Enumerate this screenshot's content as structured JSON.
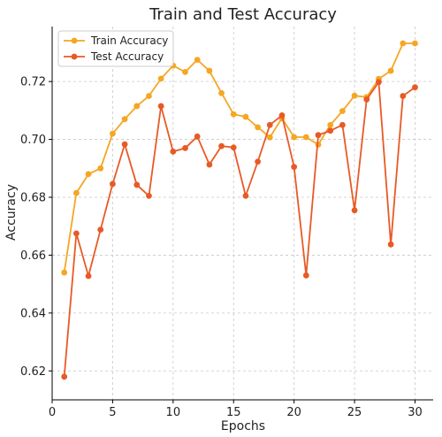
{
  "chart_data": {
    "type": "line",
    "title": "Train and Test Accuracy",
    "xlabel": "Epochs",
    "ylabel": "Accuracy",
    "xlim": [
      0,
      31.5
    ],
    "ylim": [
      0.61,
      0.739
    ],
    "xticks": [
      0,
      5,
      10,
      15,
      20,
      25,
      30
    ],
    "xtick_labels": [
      "0",
      "5",
      "10",
      "15",
      "20",
      "25",
      "30"
    ],
    "yticks": [
      0.62,
      0.64,
      0.66,
      0.68,
      0.7,
      0.72
    ],
    "ytick_labels": [
      "0.62",
      "0.64",
      "0.66",
      "0.68",
      "0.70",
      "0.72"
    ],
    "grid": true,
    "grid_style": "dashed",
    "legend_position": "top-left",
    "x": [
      1,
      2,
      3,
      4,
      5,
      6,
      7,
      8,
      9,
      10,
      11,
      12,
      13,
      14,
      15,
      16,
      17,
      18,
      19,
      20,
      21,
      22,
      23,
      24,
      25,
      26,
      27,
      28,
      29,
      30
    ],
    "series": [
      {
        "name": "Train Accuracy",
        "color": "#F5A623",
        "values": [
          0.654,
          0.6815,
          0.688,
          0.69,
          0.702,
          0.707,
          0.7115,
          0.715,
          0.721,
          0.7255,
          0.7233,
          0.7275,
          0.7237,
          0.716,
          0.7087,
          0.7078,
          0.7042,
          0.7007,
          0.7073,
          0.7008,
          0.7008,
          0.6982,
          0.705,
          0.7098,
          0.7151,
          0.7146,
          0.7209,
          0.7237,
          0.7332,
          0.7332
        ]
      },
      {
        "name": "Test Accuracy",
        "color": "#E85A25",
        "values": [
          0.618,
          0.6675,
          0.6528,
          0.6688,
          0.6846,
          0.6983,
          0.6843,
          0.6805,
          0.7115,
          0.6958,
          0.697,
          0.701,
          0.6913,
          0.6977,
          0.6972,
          0.6805,
          0.6923,
          0.705,
          0.7083,
          0.6905,
          0.653,
          0.7015,
          0.703,
          0.705,
          0.6755,
          0.7138,
          0.7198,
          0.6637,
          0.715,
          0.718
        ]
      }
    ]
  }
}
